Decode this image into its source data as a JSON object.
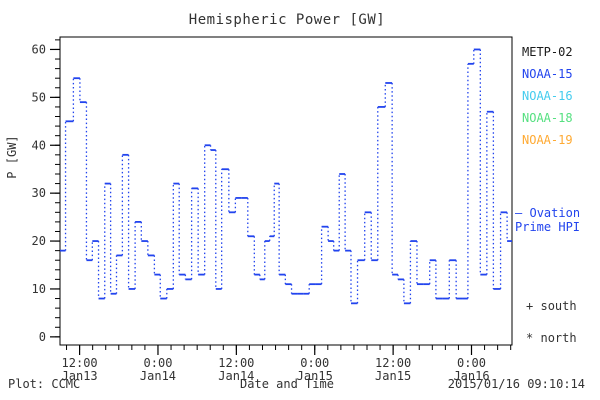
{
  "title": "Hemispheric Power [GW]",
  "y_axis_title": "P [GW]",
  "footer": {
    "left": "Plot: CCMC",
    "center": "Date and Time",
    "right": "2015/01/16 09:10:14"
  },
  "colors": {
    "axis": "#000000",
    "text": "#333333",
    "hpi_line": "#2244ee",
    "metp02": "#1a1a1a",
    "noaa15": "#2244ee",
    "noaa16": "#44ccee",
    "noaa18": "#55e080",
    "noaa19": "#ffaa33"
  },
  "legend": {
    "satellites": [
      {
        "label": "METP-02",
        "color": "#1a1a1a"
      },
      {
        "label": "NOAA-15",
        "color": "#2244ee"
      },
      {
        "label": "NOAA-16",
        "color": "#44ccee"
      },
      {
        "label": "NOAA-18",
        "color": "#55e080"
      },
      {
        "label": "NOAA-19",
        "color": "#ffaa33"
      }
    ],
    "ovation": {
      "sample": "—",
      "line1": "Ovation",
      "line2": "Prime HPI"
    },
    "markers": [
      {
        "symbol": "+",
        "label": "south"
      },
      {
        "symbol": "*",
        "label": "north"
      }
    ]
  },
  "axes": {
    "y_label": "P [GW]",
    "y_major_ticks": [
      0,
      10,
      20,
      30,
      40,
      50,
      60
    ],
    "y_minor_step": 2,
    "y_domain": [
      -1.7,
      62.6
    ],
    "x_domain_hours": [
      9.0,
      78.2
    ],
    "x_minor_step_hours": 2,
    "x_major_ticks": [
      {
        "h": 12,
        "time": "12:00",
        "date": "Jan13"
      },
      {
        "h": 24,
        "time": "0:00",
        "date": "Jan14"
      },
      {
        "h": 36,
        "time": "12:00",
        "date": "Jan14"
      },
      {
        "h": 48,
        "time": "0:00",
        "date": "Jan15"
      },
      {
        "h": 60,
        "time": "12:00",
        "date": "Jan15"
      },
      {
        "h": 72,
        "time": "0:00",
        "date": "Jan16"
      }
    ]
  },
  "chart_data": {
    "type": "line",
    "style": "histogram steps: solid dash at each value, dotted vertical connectors",
    "title": "Hemispheric Power [GW]",
    "xlabel": "Date and Time",
    "ylabel": "P [GW]",
    "ylim": [
      0,
      62
    ],
    "x_unit": "hours since 2015-01-13 00:00 UT",
    "series": [
      {
        "name": "Ovation Prime HPI",
        "color": "#2244ee",
        "t_hours": [
          9.1,
          10.6,
          11.5,
          12.6,
          13.5,
          14.4,
          15.4,
          16.3,
          17.2,
          18.1,
          19.0,
          20.0,
          21.0,
          21.9,
          23.0,
          23.9,
          24.8,
          25.9,
          26.8,
          27.7,
          28.7,
          29.6,
          30.7,
          31.6,
          32.5,
          33.2,
          34.3,
          35.4,
          36.3,
          37.2,
          38.3,
          39.2,
          40.0,
          40.7,
          41.5,
          42.1,
          43.0,
          44.0,
          44.9,
          45.8,
          46.7,
          47.6,
          48.5,
          49.6,
          50.5,
          51.3,
          52.2,
          53.1,
          54.0,
          55.1,
          56.2,
          57.1,
          58.2,
          59.4,
          60.3,
          61.2,
          62.1,
          63.2,
          64.1,
          65.1,
          66.1,
          67.0,
          68.0,
          69.2,
          70.1,
          71.0,
          71.9,
          72.8,
          73.9,
          74.8,
          75.9,
          77.0,
          77.9
        ],
        "values_gw": [
          18,
          45,
          54,
          49,
          16,
          20,
          8,
          32,
          9,
          17,
          38,
          10,
          24,
          20,
          17,
          13,
          8,
          10,
          32,
          13,
          12,
          31,
          13,
          40,
          39,
          10,
          35,
          26,
          29,
          29,
          21,
          13,
          12,
          20,
          21,
          32,
          13,
          11,
          9,
          9,
          9,
          11,
          11,
          23,
          20,
          18,
          34,
          18,
          7,
          16,
          26,
          16,
          48,
          53,
          13,
          12,
          7,
          20,
          11,
          11,
          16,
          8,
          8,
          16,
          8,
          8,
          57,
          60,
          13,
          47,
          10,
          26,
          20
        ]
      }
    ]
  }
}
